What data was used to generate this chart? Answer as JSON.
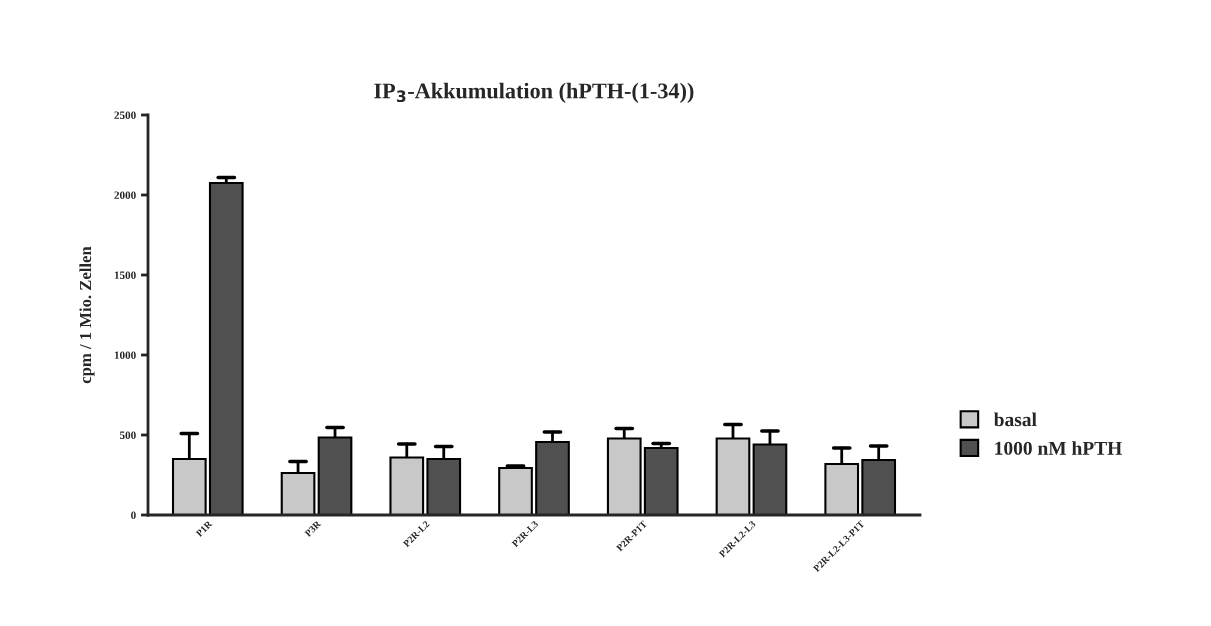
{
  "chart_data": {
    "type": "bar",
    "title": "IP$_{3}$-Akkumulation (hPTH-(1-34))",
    "ylabel": "cpm / 1 Mio. Zellen",
    "categories": [
      "P1R",
      "P3R",
      "P2R-L2",
      "P2R-L3",
      "P2R-P1T",
      "P2R-L2-L3",
      "P2R-L2-L3-P1T"
    ],
    "series": [
      {
        "name": "basal",
        "color": "#c8c8c8",
        "values": [
          350,
          262,
          359,
          294,
          478,
          478,
          319
        ],
        "errors": [
          [
            350,
            509
          ],
          [
            262,
            334
          ],
          [
            359,
            444
          ],
          [
            294,
            306
          ],
          [
            478,
            541
          ],
          [
            478,
            566
          ],
          [
            319,
            419
          ]
        ]
      },
      {
        "name": "1000 nM hPTH",
        "color": "#505050",
        "values": [
          2075,
          484,
          350,
          456,
          419,
          441,
          344
        ],
        "errors": [
          [
            2075,
            2110
          ],
          [
            484,
            547
          ],
          [
            350,
            428
          ],
          [
            456,
            519
          ],
          [
            419,
            447
          ],
          [
            441,
            525
          ],
          [
            344,
            431
          ]
        ]
      }
    ],
    "ylim": [
      0,
      2500
    ],
    "yticks": [
      0,
      500,
      1000,
      1500,
      2000,
      2500
    ],
    "grid": false,
    "legend": "right"
  }
}
